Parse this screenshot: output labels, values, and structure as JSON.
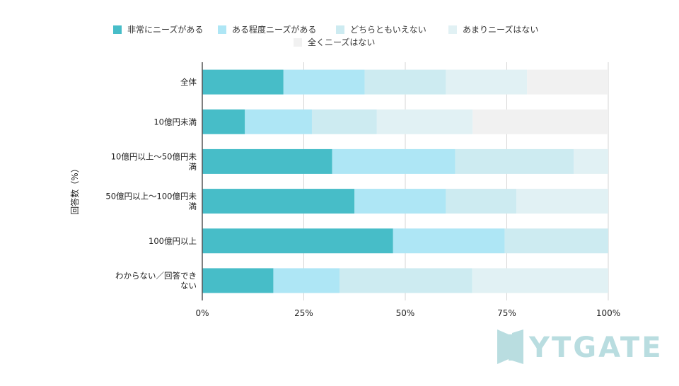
{
  "chart_data": {
    "type": "bar",
    "orientation": "horizontal",
    "stacked": "percent",
    "categories": [
      [
        "全体"
      ],
      [
        "10億円未満"
      ],
      [
        "10億円以上〜50億円未",
        "満"
      ],
      [
        "50億円以上〜100億円未",
        "満"
      ],
      [
        "100億円以上"
      ],
      [
        "わからない／回答でき",
        "ない"
      ]
    ],
    "series": [
      {
        "name": "非常にニーズがある",
        "color": "#47bdc8",
        "values": [
          20,
          10.5,
          32,
          37.5,
          47,
          17.5
        ]
      },
      {
        "name": "ある程度ニーズがある",
        "color": "#aee6f5",
        "values": [
          20,
          16.5,
          30.3,
          22.5,
          27.5,
          16.3
        ]
      },
      {
        "name": "どちらともいえない",
        "color": "#cdebf1",
        "values": [
          20,
          16,
          29.2,
          17.4,
          25.5,
          32.7
        ]
      },
      {
        "name": "あまりニーズはない",
        "color": "#e1f1f4",
        "values": [
          20,
          23.6,
          8.5,
          22.6,
          0,
          33.5
        ]
      },
      {
        "name": "全くニーズはない",
        "color": "#f1f1f1",
        "values": [
          20,
          33.4,
          0,
          0,
          0,
          0
        ]
      }
    ],
    "xlim": [
      0,
      100
    ],
    "xticks": [
      "0%",
      "25%",
      "50%",
      "75%",
      "100%"
    ],
    "ylabel": "回答数（%）",
    "grid": true,
    "legend_position": "top"
  },
  "watermark": {
    "text": "YTGATE",
    "color": "#b9dde0"
  }
}
